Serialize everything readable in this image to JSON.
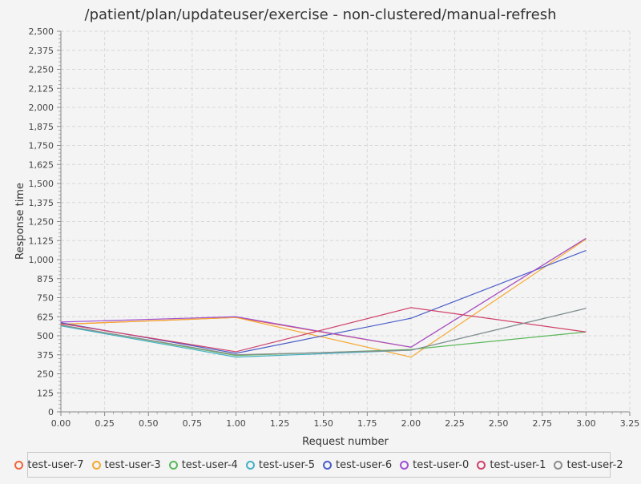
{
  "chart_data": {
    "type": "line",
    "title": "/patient/plan/updateuser/exercise - non-clustered/manual-refresh",
    "xlabel": "Request number",
    "ylabel": "Response time",
    "xlim": [
      0,
      3.25
    ],
    "ylim": [
      0,
      2500
    ],
    "x_ticks": [
      "0.00",
      "0.25",
      "0.50",
      "0.75",
      "1.00",
      "1.25",
      "1.50",
      "1.75",
      "2.00",
      "2.25",
      "2.50",
      "2.75",
      "3.00",
      "3.25"
    ],
    "y_ticks": [
      "0",
      "125",
      "250",
      "375",
      "500",
      "625",
      "750",
      "875",
      "1,000",
      "1,125",
      "1,250",
      "1,375",
      "1,500",
      "1,625",
      "1,750",
      "1,875",
      "2,000",
      "2,125",
      "2,250",
      "2,375",
      "2,500"
    ],
    "grid": true,
    "legend_position": "bottom",
    "x": [
      0,
      1,
      2,
      3
    ],
    "series": [
      {
        "name": "test-user-7",
        "color": "#f0643c",
        "values": [
          575,
          620,
          425,
          1140
        ]
      },
      {
        "name": "test-user-3",
        "color": "#f5aa32",
        "values": [
          575,
          620,
          360,
          1135
        ]
      },
      {
        "name": "test-user-4",
        "color": "#5cb85c",
        "values": [
          570,
          370,
          410,
          525
        ]
      },
      {
        "name": "test-user-5",
        "color": "#44b0c4",
        "values": [
          565,
          360,
          405,
          680
        ]
      },
      {
        "name": "test-user-6",
        "color": "#4a5cc8",
        "values": [
          585,
          385,
          615,
          1060
        ]
      },
      {
        "name": "test-user-0",
        "color": "#a050d0",
        "values": [
          590,
          625,
          425,
          1140
        ]
      },
      {
        "name": "test-user-1",
        "color": "#d0426a",
        "values": [
          580,
          395,
          685,
          525
        ]
      },
      {
        "name": "test-user-2",
        "color": "#8c8c8c",
        "values": [
          570,
          375,
          405,
          680
        ]
      }
    ]
  }
}
